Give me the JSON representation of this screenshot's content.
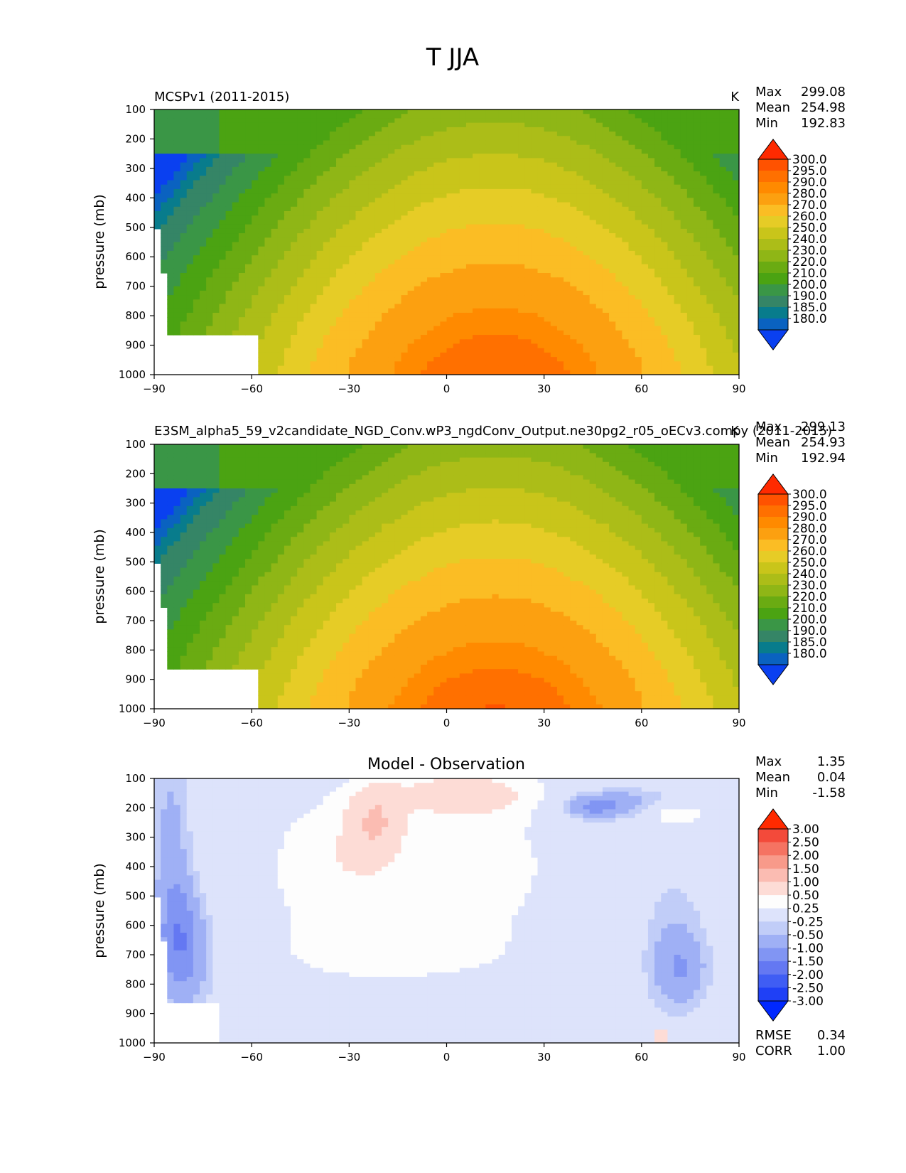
{
  "title": "T JJA",
  "chart_data": [
    {
      "type": "heatmap",
      "left_title": "MCSPv1 (2011-2015)",
      "units": "K",
      "xlabel": "",
      "ylabel": "pressure (mb)",
      "xlim": [
        -90,
        90
      ],
      "ylim": [
        1000,
        100
      ],
      "xticks": [
        "−90",
        "−60",
        "−30",
        "0",
        "30",
        "60",
        "90"
      ],
      "yticks": [
        "100",
        "200",
        "300",
        "400",
        "500",
        "600",
        "700",
        "800",
        "900",
        "1000"
      ],
      "stats": [
        [
          "Max",
          "299.08"
        ],
        [
          "Mean",
          "254.98"
        ],
        [
          "Min",
          "192.83"
        ]
      ],
      "colorbar_labels": [
        "300.0",
        "295.0",
        "290.0",
        "280.0",
        "270.0",
        "260.0",
        "250.0",
        "240.0",
        "230.0",
        "220.0",
        "210.0",
        "200.0",
        "190.0",
        "185.0",
        "180.0"
      ],
      "colorbar_colors": [
        "#ff2a00",
        "#ff5200",
        "#ff7000",
        "#ff8a00",
        "#fca010",
        "#fbbd24",
        "#e6cc26",
        "#c9c51a",
        "#acbd18",
        "#8fb616",
        "#6aab12",
        "#4ba312",
        "#3a9646",
        "#358566",
        "#087c8c",
        "#0a62c0",
        "#0a40f0"
      ],
      "field": "reference"
    },
    {
      "type": "heatmap",
      "left_title": "E3SM_alpha5_59_v2candidate_NGD_Conv.wP3_ngdConv_Output.ne30pg2_r05_oECv3.compy (2011-2015)",
      "units": "K",
      "xlabel": "",
      "ylabel": "pressure (mb)",
      "xlim": [
        -90,
        90
      ],
      "ylim": [
        1000,
        100
      ],
      "xticks": [
        "−90",
        "−60",
        "−30",
        "0",
        "30",
        "60",
        "90"
      ],
      "yticks": [
        "100",
        "200",
        "300",
        "400",
        "500",
        "600",
        "700",
        "800",
        "900",
        "1000"
      ],
      "stats": [
        [
          "Max",
          "299.13"
        ],
        [
          "Mean",
          "254.93"
        ],
        [
          "Min",
          "192.94"
        ]
      ],
      "colorbar_labels": [
        "300.0",
        "295.0",
        "290.0",
        "280.0",
        "270.0",
        "260.0",
        "250.0",
        "240.0",
        "230.0",
        "220.0",
        "210.0",
        "200.0",
        "190.0",
        "185.0",
        "180.0"
      ],
      "colorbar_colors": [
        "#ff2a00",
        "#ff5200",
        "#ff7000",
        "#ff8a00",
        "#fca010",
        "#fbbd24",
        "#e6cc26",
        "#c9c51a",
        "#acbd18",
        "#8fb616",
        "#6aab12",
        "#4ba312",
        "#3a9646",
        "#358566",
        "#087c8c",
        "#0a62c0",
        "#0a40f0"
      ],
      "field": "model"
    },
    {
      "type": "heatmap",
      "title": "Model - Observation",
      "xlabel": "",
      "ylabel": "pressure (mb)",
      "xlim": [
        -90,
        90
      ],
      "ylim": [
        1000,
        100
      ],
      "xticks": [
        "−90",
        "−60",
        "−30",
        "0",
        "30",
        "60",
        "90"
      ],
      "yticks": [
        "100",
        "200",
        "300",
        "400",
        "500",
        "600",
        "700",
        "800",
        "900",
        "1000"
      ],
      "stats": [
        [
          "Max",
          "1.35"
        ],
        [
          "Mean",
          "0.04"
        ],
        [
          "Min",
          "-1.58"
        ]
      ],
      "bottom_stats": [
        [
          "RMSE",
          "0.34"
        ],
        [
          "CORR",
          "1.00"
        ]
      ],
      "colorbar_labels": [
        "3.00",
        "2.50",
        "2.00",
        "1.50",
        "1.00",
        "0.50",
        "0.25",
        "-0.25",
        "-0.50",
        "-1.00",
        "-1.50",
        "-2.00",
        "-2.50",
        "-3.00"
      ],
      "colorbar_colors": [
        "#ff2a00",
        "#f34a3a",
        "#f57362",
        "#f89a8a",
        "#fbbcb2",
        "#fddcd6",
        "#fdfdfd",
        "#dde3fb",
        "#c1cdf8",
        "#9fb0f5",
        "#8195f3",
        "#6478f2",
        "#3f5df4",
        "#1f40f6",
        "#0028ff"
      ],
      "field": "diff"
    }
  ]
}
